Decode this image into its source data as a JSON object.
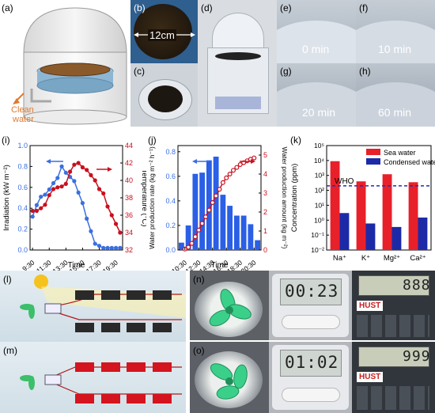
{
  "panels": {
    "a": {
      "label": "(a)",
      "caption_line1": "Clean",
      "caption_line2": "water"
    },
    "b": {
      "label": "(b)",
      "dimension": "12cm"
    },
    "c": {
      "label": "(c)"
    },
    "d": {
      "label": "(d)"
    },
    "e": {
      "label": "(e)",
      "time": "0 min"
    },
    "f": {
      "label": "(f)",
      "time": "10 min"
    },
    "g": {
      "label": "(g)",
      "time": "20 min"
    },
    "h": {
      "label": "(h)",
      "time": "60 min"
    },
    "i": {
      "label": "(i)"
    },
    "j": {
      "label": "(j)"
    },
    "k": {
      "label": "(k)"
    },
    "l": {
      "label": "(l)"
    },
    "m": {
      "label": "(m)"
    },
    "n": {
      "label": "(n)",
      "timer": "00:23",
      "calc": "888",
      "calc_brand": "HUST"
    },
    "o": {
      "label": "(o)",
      "timer": "01:02",
      "calc": "999",
      "calc_brand": "HUST"
    }
  },
  "colors": {
    "blue": "#3a6fe0",
    "red": "#c8101e",
    "bar_blue": "#2a5fe6",
    "sea_red": "#e8202a",
    "condensed_blue": "#1c2aa8",
    "who_line": "#1f2fb0"
  },
  "chart_data": [
    {
      "type": "line",
      "panel": "i",
      "xlabel": "Time",
      "ylabel_left": "Irradiation (kW m⁻²)",
      "ylabel_right": "Temperature (°C)",
      "x_tick_labels": [
        "9:30",
        "11:30",
        "13:30",
        "15:30",
        "17:30",
        "19:30"
      ],
      "y_left_ticks": [
        "0.0",
        "0.2",
        "0.4",
        "0.6",
        "0.8",
        "1.0"
      ],
      "y_right_ticks": [
        "32",
        "34",
        "36",
        "38",
        "40",
        "42",
        "44"
      ],
      "ylim_left": [
        0.0,
        1.0
      ],
      "ylim_right": [
        32,
        44
      ],
      "x_hours": [
        9.5,
        10.0,
        10.5,
        11.0,
        11.5,
        12.0,
        12.5,
        13.0,
        13.5,
        14.0,
        14.5,
        15.0,
        15.5,
        16.0,
        16.5,
        17.0,
        17.5,
        18.0,
        18.5,
        19.0,
        19.5,
        20.0
      ],
      "series": [
        {
          "axis": "left",
          "color": "#3a6fe0",
          "x": [
            9.5,
            10.0,
            10.5,
            11.0,
            11.5,
            12.0,
            12.5,
            13.0,
            13.5,
            14.0,
            14.5,
            15.0,
            15.5,
            16.0,
            16.5,
            17.0,
            17.5,
            18.0,
            18.5,
            19.0,
            19.5,
            20.0
          ],
          "values": [
            0.32,
            0.43,
            0.51,
            0.53,
            0.58,
            0.64,
            0.69,
            0.8,
            0.74,
            0.7,
            0.66,
            0.55,
            0.45,
            0.3,
            0.18,
            0.06,
            0.04,
            0.02,
            0.02,
            0.02,
            0.02,
            0.02
          ]
        },
        {
          "axis": "right",
          "color": "#c8101e",
          "x": [
            9.5,
            10.0,
            10.5,
            11.0,
            11.5,
            12.0,
            12.5,
            13.0,
            13.5,
            14.0,
            14.5,
            15.0,
            15.5,
            16.0,
            16.5,
            17.0,
            17.5,
            18.0,
            18.5,
            19.0,
            19.5,
            20.0
          ],
          "values": [
            36.5,
            36.5,
            36.8,
            37.2,
            38.3,
            39.0,
            39.2,
            39.3,
            39.6,
            41.0,
            41.8,
            42.0,
            41.5,
            41.2,
            40.6,
            40.0,
            39.0,
            38.5,
            37.0,
            36.0,
            35.0,
            34.0
          ]
        }
      ],
      "legend_arrows": [
        {
          "color": "#3a6fe0",
          "direction": "left",
          "axis": "left"
        },
        {
          "color": "#c8101e",
          "direction": "right",
          "axis": "right"
        }
      ]
    },
    {
      "type": "bar",
      "panel": "j",
      "xlabel": "Time",
      "ylabel_left": "Water production rate (kg m⁻² h⁻¹)",
      "ylabel_right": "Water production amount (kg m⁻²)",
      "x_tick_labels": [
        "10:30",
        "12:30",
        "14:30",
        "16:30",
        "18:30",
        "20:30"
      ],
      "y_left_ticks": [
        "0.0",
        "0.2",
        "0.4",
        "0.6",
        "0.8"
      ],
      "y_right_ticks": [
        "0",
        "1",
        "2",
        "3",
        "4",
        "5"
      ],
      "ylim_left": [
        0.0,
        0.85
      ],
      "ylim_right": [
        0,
        5.5
      ],
      "categories": [
        "10:00",
        "11:00",
        "12:00",
        "13:00",
        "14:00",
        "15:00",
        "16:00",
        "17:00",
        "18:00",
        "19:00",
        "20:00",
        "21:00"
      ],
      "bars": [
        0.06,
        0.2,
        0.62,
        0.63,
        0.73,
        0.76,
        0.45,
        0.36,
        0.28,
        0.28,
        0.21,
        0.08
      ],
      "line_x": [
        10.5,
        11.0,
        11.5,
        12.0,
        12.5,
        13.0,
        13.5,
        14.0,
        14.5,
        15.0,
        15.5,
        16.0,
        16.5,
        17.0,
        17.5,
        18.0,
        18.5,
        19.0,
        19.5,
        20.0,
        20.5
      ],
      "line_values": [
        0.05,
        0.15,
        0.35,
        0.7,
        1.05,
        1.4,
        1.75,
        2.1,
        2.5,
        2.85,
        3.2,
        3.55,
        3.8,
        4.0,
        4.2,
        4.35,
        4.5,
        4.6,
        4.7,
        4.78,
        4.85
      ]
    },
    {
      "type": "bar",
      "panel": "k",
      "scale": "log",
      "ylabel": "Concentration (ppm)",
      "y_tick_labels": [
        "10⁻²",
        "10⁻¹",
        "10⁰",
        "10¹",
        "10²",
        "10³",
        "10⁴",
        "10⁵"
      ],
      "ylim": [
        0.01,
        100000
      ],
      "categories": [
        "Na⁺",
        "K⁺",
        "Mg²⁺",
        "Ca²⁺"
      ],
      "series": [
        {
          "name": "Sea water",
          "color": "#e8202a",
          "values": [
            9000,
            400,
            1200,
            350
          ]
        },
        {
          "name": "Condensed water",
          "color": "#1c2aa8",
          "values": [
            3.0,
            0.6,
            0.35,
            1.5
          ]
        }
      ],
      "reference_line": {
        "label": "WHO",
        "value": 200
      },
      "legend_position": "top-right"
    }
  ]
}
